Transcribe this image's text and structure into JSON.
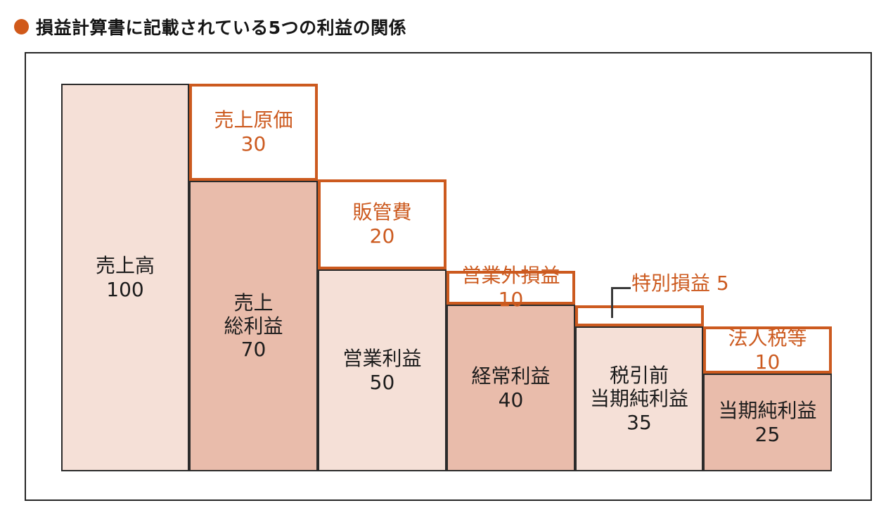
{
  "title": {
    "text": "損益計算書に記載されている5つの利益の関係"
  },
  "colors": {
    "accent_orange": "#cc5a1f",
    "title_bullet": "#d0591a",
    "bar_fill_light": "#f5e0d7",
    "bar_fill_dark": "#e9bcab",
    "bar_border": "#2b2b2b",
    "frame_border": "#262626",
    "connector_line": "#3a3a3a"
  },
  "chart_data": {
    "type": "bar",
    "subtype": "waterfall-profit-decomposition",
    "title": "損益計算書に記載されている5つの利益の関係",
    "grid": false,
    "legend": "none",
    "value_base": 100,
    "profit_steps": [
      {
        "label": "売上高",
        "value": 100
      },
      {
        "label": "売上総利益",
        "value": 70
      },
      {
        "label": "営業利益",
        "value": 50
      },
      {
        "label": "経常利益",
        "value": 40
      },
      {
        "label": "税引前当期純利益",
        "value": 35
      },
      {
        "label": "当期純利益",
        "value": 25
      }
    ],
    "deductions": [
      {
        "label": "売上原価",
        "value": 30,
        "between": [
          "売上高",
          "売上総利益"
        ]
      },
      {
        "label": "販管費",
        "value": 20,
        "between": [
          "売上総利益",
          "営業利益"
        ]
      },
      {
        "label": "営業外損益",
        "value": 10,
        "between": [
          "営業利益",
          "経常利益"
        ]
      },
      {
        "label": "特別損益",
        "value": 5,
        "between": [
          "経常利益",
          "税引前当期純利益"
        ]
      },
      {
        "label": "法人税等",
        "value": 10,
        "between": [
          "税引前当期純利益",
          "当期純利益"
        ]
      }
    ]
  },
  "diagram": {
    "bars": [
      {
        "lines": [
          "売上高",
          "100"
        ]
      },
      {
        "lines": [
          "売上",
          "総利益",
          "70"
        ]
      },
      {
        "lines": [
          "営業利益",
          "50"
        ]
      },
      {
        "lines": [
          "経常利益",
          "40"
        ]
      },
      {
        "lines": [
          "税引前",
          "当期純利益",
          "35"
        ]
      },
      {
        "lines": [
          "当期純利益",
          "25"
        ]
      }
    ],
    "cost_boxes": [
      {
        "lines": [
          "売上原価",
          "30"
        ]
      },
      {
        "lines": [
          "販管費",
          "20"
        ]
      },
      {
        "lines": [
          "営業外損益 10"
        ]
      },
      {
        "lines": []
      },
      {
        "lines": [
          "法人税等",
          "10"
        ]
      }
    ],
    "extraordinary_label": "特別損益 5"
  }
}
